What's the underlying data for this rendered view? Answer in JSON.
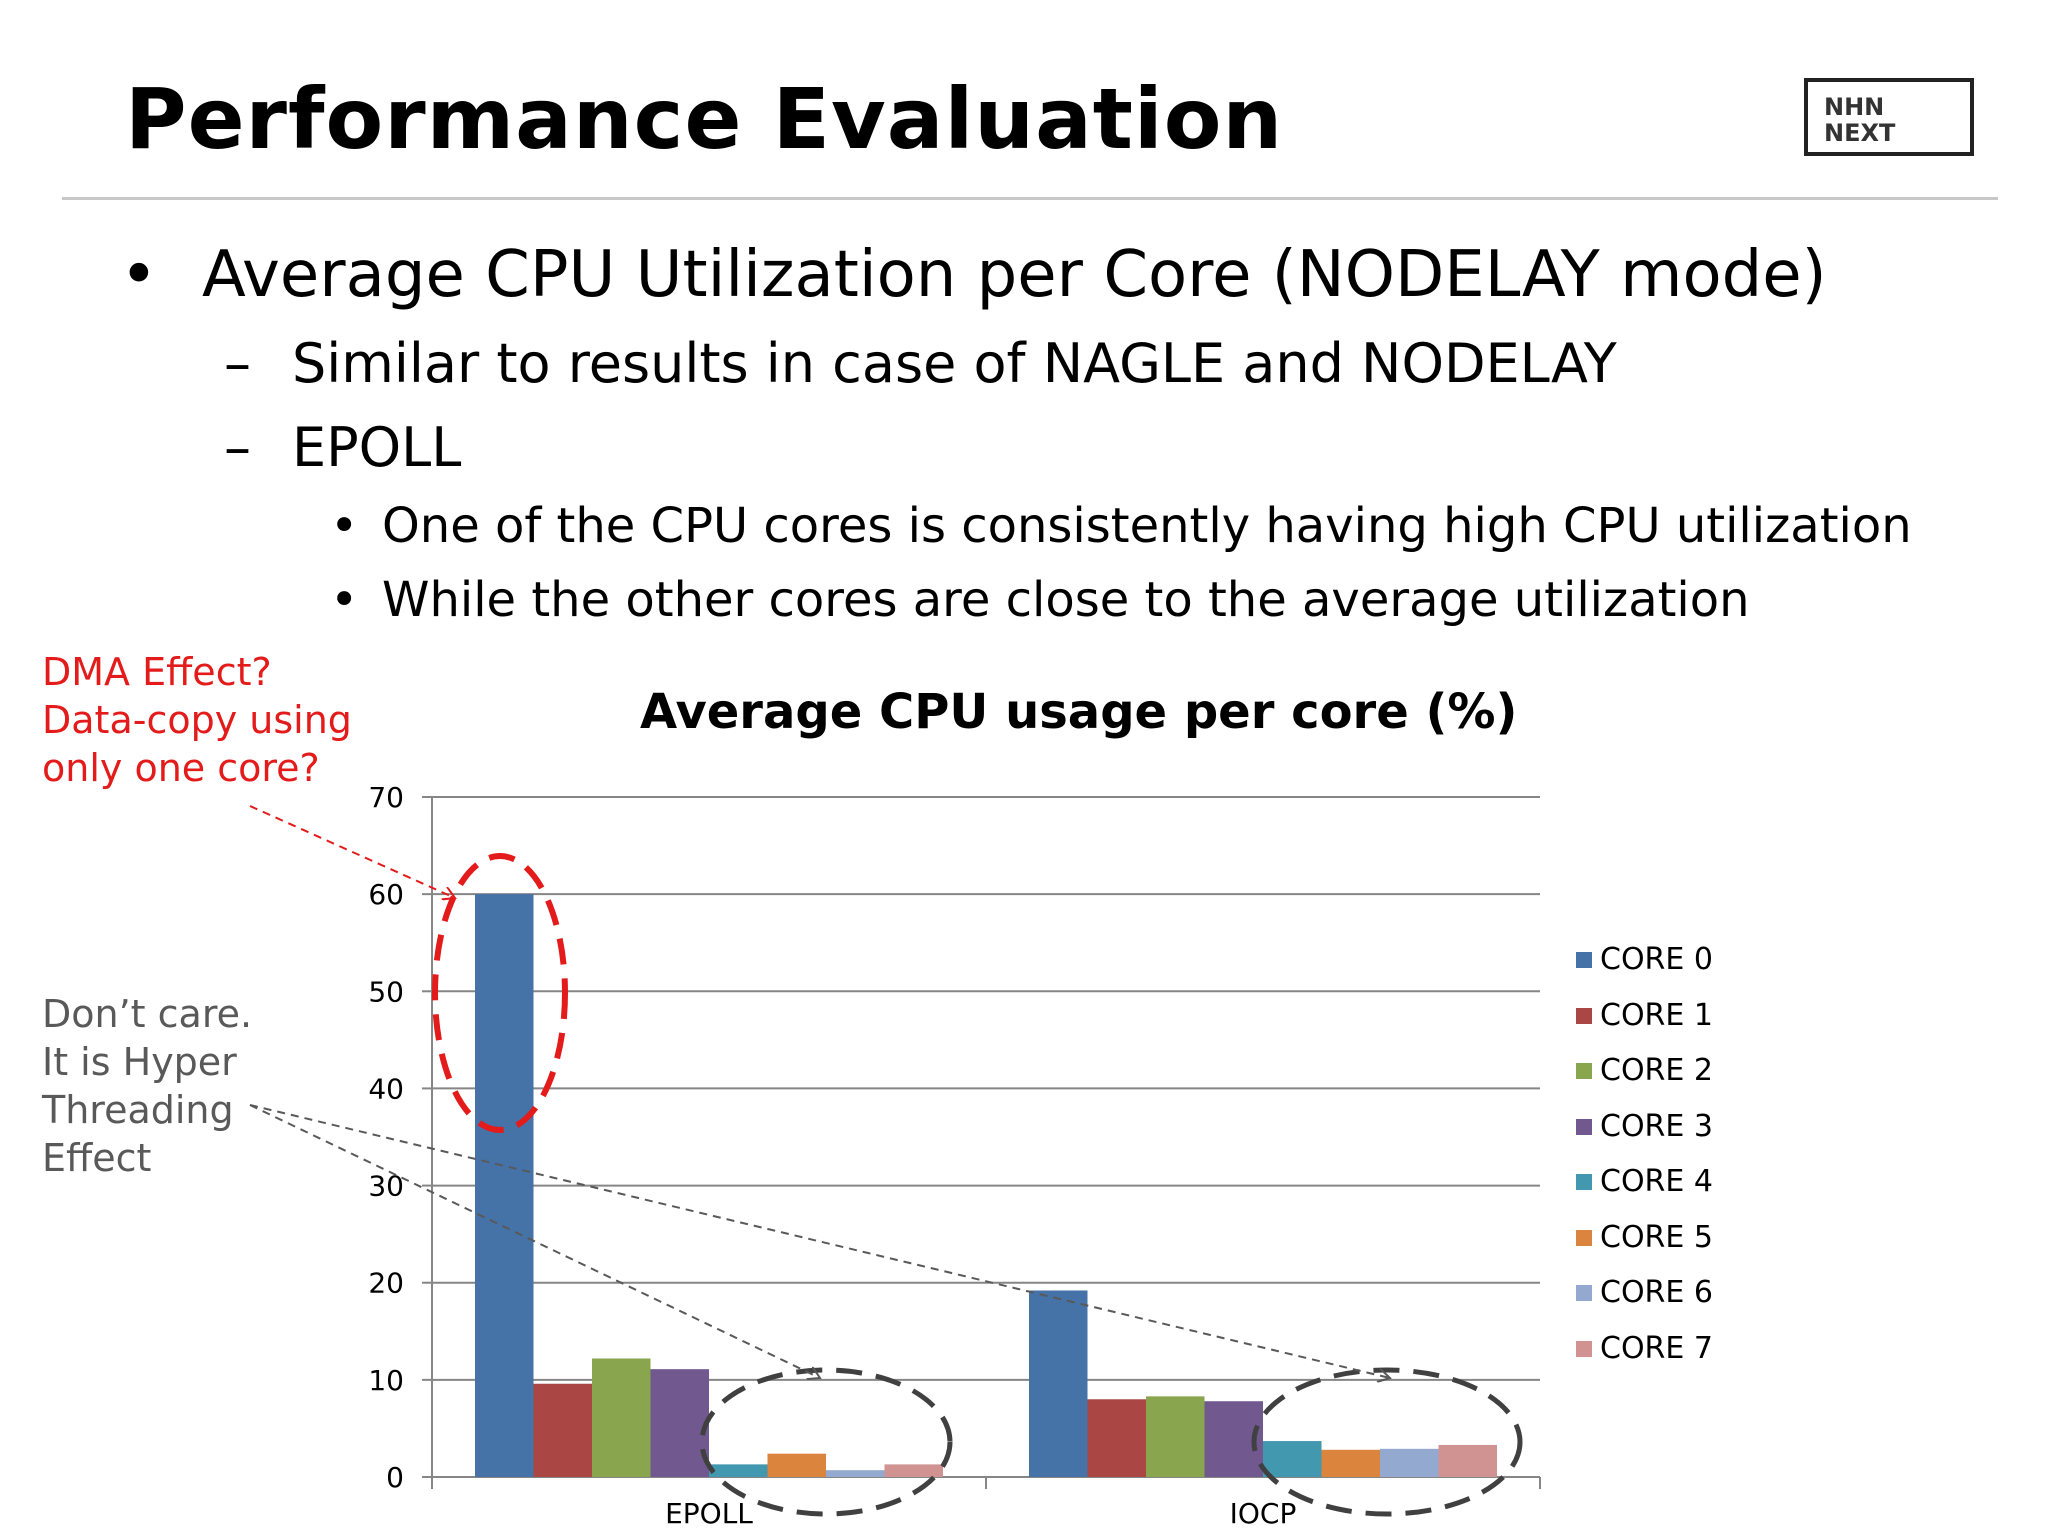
{
  "slide": {
    "title": "Performance Evaluation",
    "logo_lines": [
      "NHN",
      "NEXT"
    ],
    "bullets": {
      "level1": "Average CPU Utilization per Core (NODELAY mode)",
      "level2": [
        "Similar to results in case of NAGLE and NODELAY",
        "EPOLL"
      ],
      "level3": [
        "One of the CPU cores is consistently having high CPU utilization",
        "While the other cores are close to the average utilization"
      ],
      "marks": {
        "dot": "•",
        "dash": "–"
      }
    },
    "annotations": {
      "red_lines": [
        "DMA Effect?",
        "Data-copy using",
        "only one core?"
      ],
      "gray_lines": [
        "Don’t care.",
        "It is Hyper",
        "Threading",
        "Effect"
      ],
      "red_color": "#e31b1b",
      "gray_color": "#595959"
    }
  },
  "chart_data": {
    "type": "bar",
    "title": "Average CPU usage per core (%)",
    "xlabel": "",
    "ylabel": "",
    "categories": [
      "EPOLL",
      "IOCP"
    ],
    "ylim": [
      0,
      70
    ],
    "yticks": [
      0,
      10,
      20,
      30,
      40,
      50,
      60,
      70
    ],
    "grid": true,
    "legend_position": "right",
    "series": [
      {
        "name": "CORE 0",
        "color": "#4572a7",
        "values": [
          60,
          19.2
        ]
      },
      {
        "name": "CORE 1",
        "color": "#aa4643",
        "values": [
          9.6,
          8
        ]
      },
      {
        "name": "CORE 2",
        "color": "#89a54e",
        "values": [
          12.2,
          8.3
        ]
      },
      {
        "name": "CORE 3",
        "color": "#71588f",
        "values": [
          11.1,
          7.8
        ]
      },
      {
        "name": "CORE 4",
        "color": "#4198af",
        "values": [
          1.3,
          3.7
        ]
      },
      {
        "name": "CORE 5",
        "color": "#db843d",
        "values": [
          2.4,
          2.8
        ]
      },
      {
        "name": "CORE 6",
        "color": "#93a9cf",
        "values": [
          0.7,
          2.9
        ]
      },
      {
        "name": "CORE 7",
        "color": "#d19392",
        "values": [
          1.3,
          3.3
        ]
      }
    ]
  }
}
